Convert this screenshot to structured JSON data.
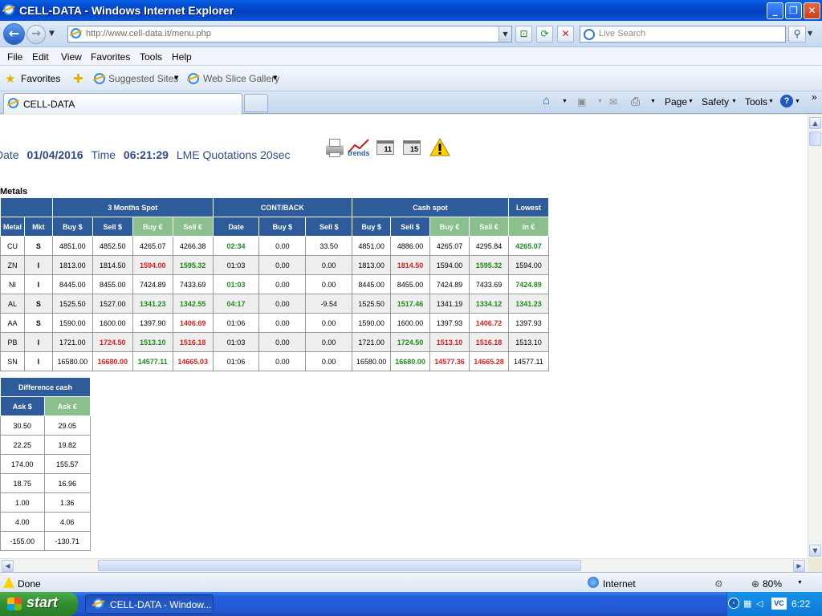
{
  "window": {
    "title": "CELL-DATA - Windows Internet Explorer"
  },
  "nav": {
    "url": "http://www.cell-data.it/menu.php",
    "search_placeholder": "Live Search"
  },
  "menu": [
    "File",
    "Edit",
    "View",
    "Favorites",
    "Tools",
    "Help"
  ],
  "favbar": {
    "favorites": "Favorites",
    "suggested": "Suggested Sites",
    "webslice": "Web Slice Gallery"
  },
  "tab": {
    "title": "CELL-DATA"
  },
  "commandbar": {
    "page": "Page",
    "safety": "Safety",
    "tools": "Tools"
  },
  "quote": {
    "date_label": "Date",
    "date": "01/04/2016",
    "time_label": "Time",
    "time": "06:21:29",
    "lme": "LME Quotations 20sec"
  },
  "icons": {
    "trends": "trends",
    "cal11": "11",
    "cal15": "15"
  },
  "metals_label": "Metals",
  "table": {
    "groups": {
      "three_months": "3 Months Spot",
      "cont_back": "CONT/BACK",
      "cash_spot": "Cash spot",
      "lowest": "Lowest"
    },
    "headers": [
      "Metal",
      "Mkt",
      "Buy $",
      "Sell $",
      "Buy €",
      "Sell €",
      "Date",
      "Buy $",
      "Sell $",
      "Buy $",
      "Sell $",
      "Buy €",
      "Sell €",
      "in €"
    ],
    "rows": [
      [
        "CU",
        "S",
        "4851.00",
        "4852.50",
        "4265.07",
        "4266.38",
        "02:34",
        "0.00",
        "33.50",
        "4851.00",
        "4886.00",
        "4265.07",
        "4295.84",
        "4265.07"
      ],
      [
        "ZN",
        "I",
        "1813.00",
        "1814.50",
        "1594.00",
        "1595.32",
        "01:03",
        "0.00",
        "0.00",
        "1813.00",
        "1814.50",
        "1594.00",
        "1595.32",
        "1594.00"
      ],
      [
        "NI",
        "I",
        "8445.00",
        "8455.00",
        "7424.89",
        "7433.69",
        "01:03",
        "0.00",
        "0.00",
        "8445.00",
        "8455.00",
        "7424.89",
        "7433.69",
        "7424.89"
      ],
      [
        "AL",
        "S",
        "1525.50",
        "1527.00",
        "1341.23",
        "1342.55",
        "04:17",
        "0.00",
        "-9.54",
        "1525.50",
        "1517.46",
        "1341.19",
        "1334.12",
        "1341.23"
      ],
      [
        "AA",
        "S",
        "1590.00",
        "1600.00",
        "1397.90",
        "1406.69",
        "01:06",
        "0.00",
        "0.00",
        "1590.00",
        "1600.00",
        "1397.93",
        "1406.72",
        "1397.93"
      ],
      [
        "PB",
        "I",
        "1721.00",
        "1724.50",
        "1513.10",
        "1516.18",
        "01:03",
        "0.00",
        "0.00",
        "1721.00",
        "1724.50",
        "1513.10",
        "1516.18",
        "1513.10"
      ],
      [
        "SN",
        "I",
        "16580.00",
        "16680.00",
        "14577.11",
        "14665.03",
        "01:06",
        "0.00",
        "0.00",
        "16580.00",
        "16680.00",
        "14577.36",
        "14665.28",
        "14577.11"
      ]
    ],
    "cell_colors": [
      [
        "",
        "",
        "",
        "",
        "",
        "",
        "g",
        "",
        "",
        "",
        "",
        "",
        "",
        "g"
      ],
      [
        "",
        "",
        "",
        "",
        "r",
        "g",
        "",
        "",
        "",
        "",
        "r",
        "",
        "g",
        ""
      ],
      [
        "",
        "",
        "",
        "",
        "",
        "",
        "g",
        "",
        "",
        "",
        "",
        "",
        "",
        "g"
      ],
      [
        "",
        "",
        "",
        "",
        "g",
        "g",
        "g",
        "",
        "",
        "",
        "g",
        "",
        "g",
        "g"
      ],
      [
        "",
        "",
        "",
        "",
        "",
        "r",
        "",
        "",
        "",
        "",
        "",
        "",
        "r",
        ""
      ],
      [
        "",
        "",
        "",
        "r",
        "g",
        "r",
        "",
        "",
        "",
        "",
        "g",
        "r",
        "r",
        ""
      ],
      [
        "",
        "",
        "",
        "r",
        "g",
        "r",
        "",
        "",
        "",
        "",
        "g",
        "r",
        "r",
        ""
      ]
    ]
  },
  "diff": {
    "title": "Difference cash",
    "headers": [
      "Ask $",
      "Ask €"
    ],
    "rows": [
      [
        "30.50",
        "29.05"
      ],
      [
        "22.25",
        "19.82"
      ],
      [
        "174.00",
        "155.57"
      ],
      [
        "18.75",
        "16.96"
      ],
      [
        "1.00",
        "1.36"
      ],
      [
        "4.00",
        "4.06"
      ],
      [
        "-155.00",
        "-130.71"
      ]
    ]
  },
  "status": {
    "text": "Done",
    "zone": "Internet",
    "zoom": "80%"
  },
  "taskbar": {
    "start": "start",
    "item": "CELL-DATA - Window...",
    "clock": "6:22"
  },
  "colors": {
    "header_blue": "#2e5c9a",
    "header_green": "#8bbf8d",
    "up": "#1e8b1e",
    "down": "#dd2020"
  }
}
